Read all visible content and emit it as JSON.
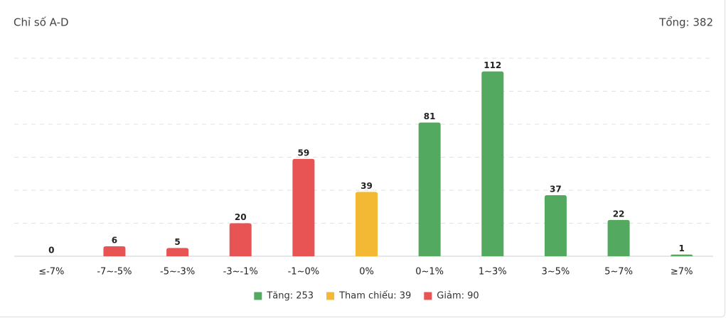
{
  "chart_data": {
    "type": "bar",
    "title": "Chỉ số A-D",
    "total_label": "Tổng: 382",
    "categories": [
      "≤-7%",
      "-7~-5%",
      "-5~-3%",
      "-3~-1%",
      "-1~0%",
      "0%",
      "0~1%",
      "1~3%",
      "3~5%",
      "5~7%",
      "≥7%"
    ],
    "values": [
      0,
      6,
      5,
      20,
      59,
      39,
      81,
      112,
      37,
      22,
      1
    ],
    "colors": [
      "#e85454",
      "#e85454",
      "#e85454",
      "#e85454",
      "#e85454",
      "#f3b934",
      "#52a95f",
      "#52a95f",
      "#52a95f",
      "#52a95f",
      "#52a95f"
    ],
    "ylim": [
      0,
      120
    ],
    "yticks": [
      0,
      20,
      40,
      60,
      80,
      100,
      120
    ],
    "grid": true,
    "legend": [
      {
        "label": "Tăng: 253",
        "color": "#52a95f"
      },
      {
        "label": "Tham chiếu: 39",
        "color": "#f3b934"
      },
      {
        "label": "Giảm: 90",
        "color": "#e85454"
      }
    ]
  }
}
